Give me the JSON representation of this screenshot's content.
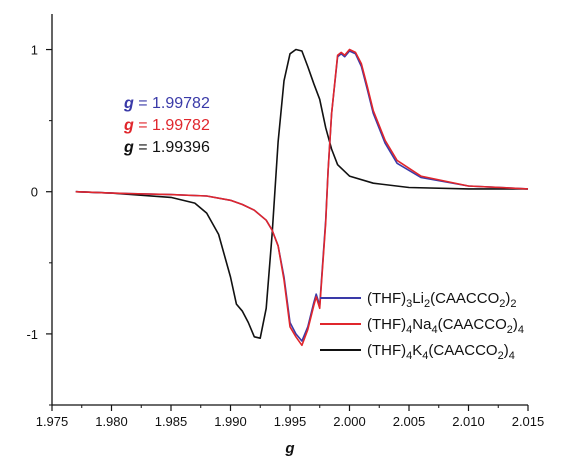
{
  "chart_data": {
    "type": "line",
    "title": "",
    "xlabel": "g",
    "ylabel": "",
    "xlim": [
      1.975,
      2.015
    ],
    "ylim": [
      -1.5,
      1.25
    ],
    "x_ticks": [
      "1.975",
      "1.980",
      "1.985",
      "1.990",
      "1.995",
      "2.000",
      "2.005",
      "2.010",
      "2.015"
    ],
    "y_ticks": [
      "-1",
      "0",
      "1"
    ],
    "grid": false,
    "legend_position": "lower-right",
    "annotations": [
      {
        "prefix": "g",
        "text": " = 1.99782",
        "color": "#3a3aa8"
      },
      {
        "prefix": "g",
        "text": " = 1.99782",
        "color": "#e0262c"
      },
      {
        "prefix": "g",
        "text": " = 1.99396",
        "color": "#111111"
      }
    ],
    "series": [
      {
        "label": [
          "(THF)",
          "3",
          "Li",
          "2",
          "(CAACCO",
          "2",
          ")",
          "2"
        ],
        "color": "#3a3aa8",
        "x": [
          1.977,
          1.98,
          1.985,
          1.988,
          1.99,
          1.991,
          1.992,
          1.993,
          1.9935,
          1.994,
          1.9945,
          1.995,
          1.9955,
          1.996,
          1.9965,
          1.997,
          1.9972,
          1.9975,
          1.998,
          1.9982,
          1.9985,
          1.999,
          1.9993,
          1.9996,
          2.0,
          2.0005,
          2.001,
          2.0015,
          2.002,
          2.003,
          2.004,
          2.006,
          2.01,
          2.015
        ],
        "y": [
          0.0,
          -0.01,
          -0.02,
          -0.03,
          -0.06,
          -0.09,
          -0.13,
          -0.2,
          -0.27,
          -0.38,
          -0.6,
          -0.92,
          -1.0,
          -1.05,
          -0.95,
          -0.78,
          -0.72,
          -0.8,
          -0.2,
          0.15,
          0.55,
          0.95,
          0.97,
          0.95,
          0.99,
          0.97,
          0.88,
          0.72,
          0.55,
          0.34,
          0.2,
          0.1,
          0.04,
          0.02
        ]
      },
      {
        "label": [
          "(THF)",
          "4",
          "Na",
          "4",
          "(CAACCO",
          "2",
          ")",
          "4"
        ],
        "color": "#e0262c",
        "x": [
          1.977,
          1.98,
          1.985,
          1.988,
          1.99,
          1.991,
          1.992,
          1.993,
          1.9935,
          1.994,
          1.9945,
          1.995,
          1.9955,
          1.996,
          1.9965,
          1.997,
          1.9972,
          1.9975,
          1.998,
          1.9982,
          1.9985,
          1.999,
          1.9993,
          1.9996,
          2.0,
          2.0005,
          2.001,
          2.0015,
          2.002,
          2.003,
          2.004,
          2.006,
          2.01,
          2.015
        ],
        "y": [
          0.0,
          -0.01,
          -0.02,
          -0.03,
          -0.06,
          -0.09,
          -0.13,
          -0.2,
          -0.27,
          -0.38,
          -0.62,
          -0.95,
          -1.02,
          -1.08,
          -0.97,
          -0.8,
          -0.74,
          -0.82,
          -0.22,
          0.15,
          0.55,
          0.96,
          0.98,
          0.96,
          1.0,
          0.98,
          0.9,
          0.74,
          0.57,
          0.36,
          0.22,
          0.11,
          0.04,
          0.02
        ]
      },
      {
        "label": [
          "(THF)",
          "4",
          "K",
          "4",
          "(CAACCO",
          "2",
          ")",
          "4"
        ],
        "color": "#111111",
        "x": [
          1.977,
          1.98,
          1.985,
          1.987,
          1.988,
          1.989,
          1.99,
          1.9905,
          1.991,
          1.9915,
          1.992,
          1.9925,
          1.993,
          1.9935,
          1.994,
          1.9945,
          1.995,
          1.9955,
          1.996,
          1.9965,
          1.997,
          1.9975,
          1.998,
          1.9985,
          1.999,
          2.0,
          2.002,
          2.005,
          2.01,
          2.015
        ],
        "y": [
          0.0,
          -0.01,
          -0.04,
          -0.08,
          -0.15,
          -0.3,
          -0.6,
          -0.79,
          -0.84,
          -0.92,
          -1.02,
          -1.03,
          -0.82,
          -0.3,
          0.35,
          0.78,
          0.97,
          1.0,
          0.99,
          0.88,
          0.76,
          0.65,
          0.45,
          0.3,
          0.19,
          0.11,
          0.06,
          0.03,
          0.02,
          0.02
        ]
      }
    ]
  }
}
